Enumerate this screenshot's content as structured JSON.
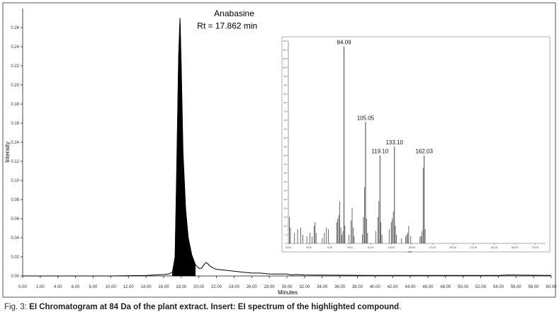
{
  "chart_data": [
    {
      "type": "line",
      "xlabel": "Minutes",
      "ylabel": "Intensity",
      "xlim": [
        0,
        60
      ],
      "ylim": [
        0,
        0.28
      ],
      "x_ticks": [
        "0.00",
        "2.00",
        "4.00",
        "6.00",
        "8.00",
        "10.00",
        "12.00",
        "14.00",
        "16.00",
        "18.00",
        "20.00",
        "22.00",
        "24.00",
        "26.00",
        "28.00",
        "30.00",
        "32.00",
        "34.00",
        "36.00",
        "38.00",
        "40.00",
        "42.00",
        "44.00",
        "46.00",
        "48.00",
        "50.00",
        "52.00",
        "54.00",
        "56.00",
        "58.00",
        "60.00"
      ],
      "y_ticks": [
        "0.00",
        "0.02",
        "0.04",
        "0.06",
        "0.08",
        "0.10",
        "0.12",
        "0.14",
        "0.16",
        "0.18",
        "0.20",
        "0.22",
        "0.24",
        "0.26"
      ],
      "series": [
        {
          "x": [
            0,
            5,
            10,
            14,
            15,
            16,
            16.6,
            17.0,
            17.3,
            17.5,
            17.7,
            17.862,
            18.0,
            18.2,
            18.5,
            18.8,
            19.2,
            19.6,
            20.0,
            20.3,
            20.6,
            20.8,
            21.0,
            21.3,
            21.7,
            22.0,
            23,
            24,
            25,
            26,
            27,
            28,
            29,
            30,
            30.5,
            31,
            32,
            35,
            40,
            45,
            50,
            54,
            55,
            60
          ],
          "y": [
            0.0,
            0.0,
            0.0,
            0.0005,
            0.001,
            0.0015,
            0.002,
            0.004,
            0.02,
            0.12,
            0.23,
            0.27,
            0.22,
            0.13,
            0.07,
            0.04,
            0.022,
            0.012,
            0.008,
            0.008,
            0.012,
            0.014,
            0.013,
            0.01,
            0.008,
            0.007,
            0.006,
            0.005,
            0.004,
            0.003,
            0.003,
            0.002,
            0.002,
            0.002,
            0.001,
            0.0015,
            0.001,
            0.0008,
            0.0005,
            0.0005,
            0.0005,
            0.0005,
            0.001,
            0.0005
          ]
        }
      ],
      "annotations": [
        {
          "text": "Anabasine",
          "x": 19.8,
          "y": 0.272
        },
        {
          "text": "Rt = 17.862 min",
          "x": 19.8,
          "y": 0.259
        }
      ]
    },
    {
      "type": "bar",
      "xlabel": "m/z",
      "xlim": [
        30,
        280
      ],
      "ylim": [
        0,
        115
      ],
      "x_ticks": [
        "30.00",
        "50.00",
        "70.00",
        "90.00",
        "110.00",
        "130.00",
        "150.00",
        "170.00",
        "190.00",
        "210.00",
        "230.00",
        "250.00",
        "270.00"
      ],
      "y_ticks": [
        "0",
        "5",
        "10",
        "15",
        "20",
        "25",
        "30",
        "35",
        "40",
        "45",
        "50",
        "55",
        "60",
        "65",
        "70",
        "75",
        "80",
        "85",
        "90",
        "95",
        "100",
        "105",
        "110",
        "115"
      ],
      "peaks": [
        {
          "mz": 31,
          "v": 15
        },
        {
          "mz": 32,
          "v": 9
        },
        {
          "mz": 36,
          "v": 6
        },
        {
          "mz": 39,
          "v": 8
        },
        {
          "mz": 42,
          "v": 9
        },
        {
          "mz": 44,
          "v": 5
        },
        {
          "mz": 48,
          "v": 4
        },
        {
          "mz": 51,
          "v": 6
        },
        {
          "mz": 53,
          "v": 4
        },
        {
          "mz": 55,
          "v": 10
        },
        {
          "mz": 56,
          "v": 12
        },
        {
          "mz": 57,
          "v": 6
        },
        {
          "mz": 63,
          "v": 3
        },
        {
          "mz": 65,
          "v": 6
        },
        {
          "mz": 67,
          "v": 9
        },
        {
          "mz": 69,
          "v": 8
        },
        {
          "mz": 77,
          "v": 12
        },
        {
          "mz": 78,
          "v": 14
        },
        {
          "mz": 79,
          "v": 16
        },
        {
          "mz": 80,
          "v": 24
        },
        {
          "mz": 81,
          "v": 9
        },
        {
          "mz": 82,
          "v": 5
        },
        {
          "mz": 83,
          "v": 7
        },
        {
          "mz": 84.09,
          "v": 112,
          "label": "84.09"
        },
        {
          "mz": 85,
          "v": 10
        },
        {
          "mz": 89,
          "v": 5
        },
        {
          "mz": 91,
          "v": 13
        },
        {
          "mz": 92,
          "v": 20
        },
        {
          "mz": 93,
          "v": 9
        },
        {
          "mz": 94,
          "v": 4
        },
        {
          "mz": 102,
          "v": 5
        },
        {
          "mz": 103,
          "v": 15
        },
        {
          "mz": 104,
          "v": 32
        },
        {
          "mz": 105.05,
          "v": 69,
          "label": "105.05"
        },
        {
          "mz": 106,
          "v": 14
        },
        {
          "mz": 107,
          "v": 6
        },
        {
          "mz": 115,
          "v": 7
        },
        {
          "mz": 117,
          "v": 15
        },
        {
          "mz": 118,
          "v": 24
        },
        {
          "mz": 119.1,
          "v": 50,
          "label": "119.10"
        },
        {
          "mz": 120,
          "v": 12
        },
        {
          "mz": 121,
          "v": 5
        },
        {
          "mz": 128,
          "v": 8
        },
        {
          "mz": 130,
          "v": 12
        },
        {
          "mz": 131,
          "v": 14
        },
        {
          "mz": 132,
          "v": 18
        },
        {
          "mz": 133.1,
          "v": 55,
          "label": "133.10"
        },
        {
          "mz": 134,
          "v": 10
        },
        {
          "mz": 135,
          "v": 5
        },
        {
          "mz": 140,
          "v": 3
        },
        {
          "mz": 144,
          "v": 4
        },
        {
          "mz": 145,
          "v": 5
        },
        {
          "mz": 146,
          "v": 6
        },
        {
          "mz": 147,
          "v": 10
        },
        {
          "mz": 149,
          "v": 4
        },
        {
          "mz": 158,
          "v": 4
        },
        {
          "mz": 159,
          "v": 4
        },
        {
          "mz": 160,
          "v": 7
        },
        {
          "mz": 161,
          "v": 43
        },
        {
          "mz": 162.03,
          "v": 50,
          "label": "162.03"
        },
        {
          "mz": 163,
          "v": 8
        }
      ]
    }
  ],
  "caption": {
    "prefix": "Fig. 3: ",
    "bold": "EI Chromatogram at 84 Da of the plant extract. Insert: EI spectrum of the highlighted compound",
    "suffix": "."
  }
}
